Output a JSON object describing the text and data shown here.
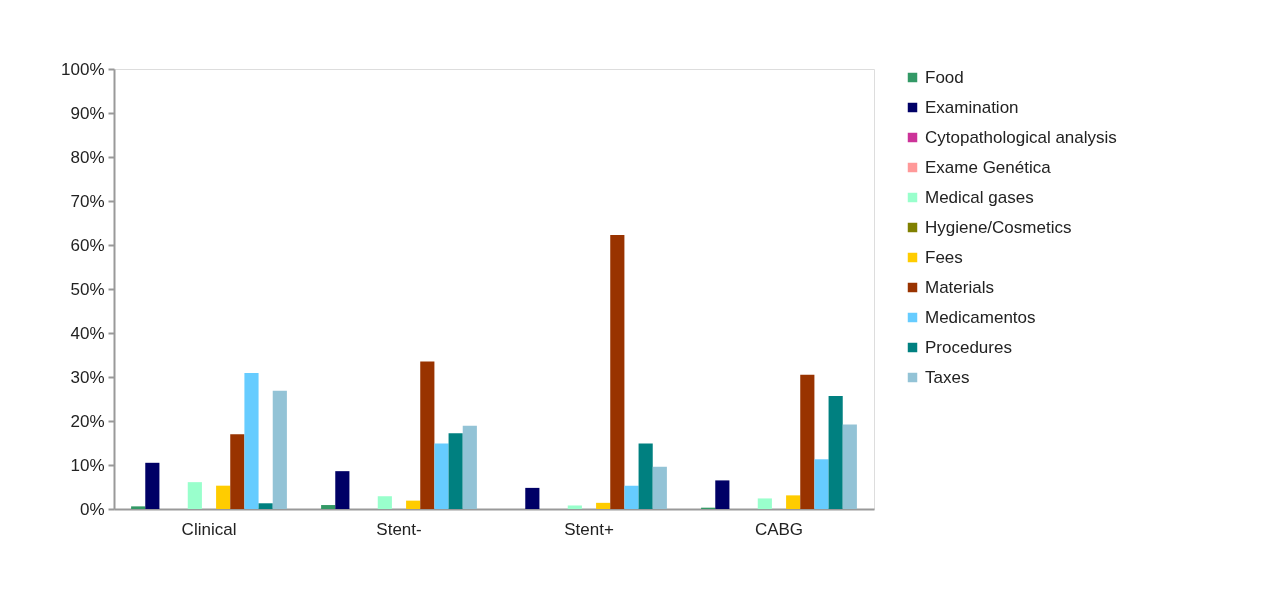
{
  "chart_data": {
    "type": "bar",
    "categories": [
      "Clinical",
      "Stent-",
      "Stent+",
      "CABG"
    ],
    "series": [
      {
        "name": "Food",
        "color": "#339966",
        "values": [
          0.6,
          0.9,
          null,
          0.3
        ]
      },
      {
        "name": "Examination",
        "color": "#000066",
        "values": [
          10.5,
          8.6,
          4.8,
          6.5
        ]
      },
      {
        "name": "Cytopathological analysis",
        "color": "#cc3399",
        "values": [
          null,
          null,
          null,
          null
        ]
      },
      {
        "name": "Exame Genética",
        "color": "#ff9999",
        "values": [
          null,
          null,
          null,
          null
        ]
      },
      {
        "name": "Medical gases",
        "color": "#99ffcc",
        "values": [
          6.1,
          2.9,
          0.8,
          2.4
        ]
      },
      {
        "name": "Hygiene/Cosmetics",
        "color": "#808000",
        "values": [
          null,
          null,
          null,
          null
        ]
      },
      {
        "name": "Fees",
        "color": "#ffcc00",
        "values": [
          5.3,
          1.9,
          1.4,
          3.1
        ]
      },
      {
        "name": "Materials",
        "color": "#993300",
        "values": [
          17.0,
          33.5,
          62.3,
          30.5
        ]
      },
      {
        "name": "Medicamentos",
        "color": "#66ccff",
        "values": [
          30.9,
          14.9,
          5.3,
          11.3
        ]
      },
      {
        "name": "Procedures",
        "color": "#008080",
        "values": [
          1.3,
          17.2,
          14.9,
          25.7
        ]
      },
      {
        "name": "Taxes",
        "color": "#93c3d6",
        "values": [
          26.9,
          18.9,
          9.6,
          19.2
        ]
      }
    ],
    "ylim": [
      0,
      100
    ],
    "yticks": [
      {
        "value": 0,
        "label": "0%"
      },
      {
        "value": 10,
        "label": "10%"
      },
      {
        "value": 20,
        "label": "20%"
      },
      {
        "value": 30,
        "label": "30%"
      },
      {
        "value": 40,
        "label": "40%"
      },
      {
        "value": 50,
        "label": "50%"
      },
      {
        "value": 60,
        "label": "60%"
      },
      {
        "value": 70,
        "label": "70%"
      },
      {
        "value": 80,
        "label": "80%"
      },
      {
        "value": 90,
        "label": "90%"
      },
      {
        "value": 100,
        "label": "100%"
      }
    ],
    "grid": false,
    "legend": "right"
  }
}
